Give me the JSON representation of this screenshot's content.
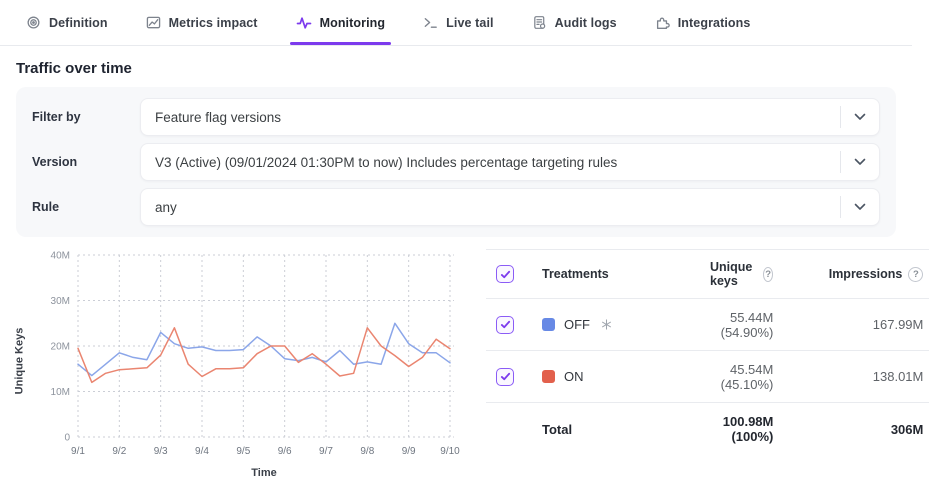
{
  "colors": {
    "accent_purple": "#7c3aed",
    "off_swatch_blue": "#6789e5",
    "on_swatch_red": "#e2604c",
    "line_blue": "#8ba6e9",
    "line_red": "#ea8570"
  },
  "tabs": {
    "items": [
      {
        "label": "Definition",
        "icon": "target-icon",
        "active": false
      },
      {
        "label": "Metrics impact",
        "icon": "line-chart-icon",
        "active": false
      },
      {
        "label": "Monitoring",
        "icon": "pulse-icon",
        "active": true
      },
      {
        "label": "Live tail",
        "icon": "terminal-icon",
        "active": false
      },
      {
        "label": "Audit logs",
        "icon": "audit-log-icon",
        "active": false
      },
      {
        "label": "Integrations",
        "icon": "puzzle-icon",
        "active": false
      }
    ]
  },
  "page_title": "Traffic over time",
  "filters": {
    "rows": [
      {
        "label": "Filter by",
        "value": "Feature flag versions"
      },
      {
        "label": "Version",
        "value": "V3 (Active) (09/01/2024 01:30PM to now) Includes percentage targeting rules"
      },
      {
        "label": "Rule",
        "value": "any"
      }
    ]
  },
  "chart_data": {
    "type": "line",
    "title": "",
    "xlabel": "Time",
    "ylabel": "Unique Keys",
    "y_unit": "M",
    "ylim_M": [
      0,
      40
    ],
    "ytick_labels": [
      "0",
      "10M",
      "20M",
      "30M",
      "40M"
    ],
    "x": [
      "9/1",
      "9/2",
      "9/3",
      "9/4",
      "9/5",
      "9/6",
      "9/7",
      "9/8",
      "9/9",
      "9/10"
    ],
    "points_per_day": 3,
    "grid": "dotted",
    "legend_position": "table-right",
    "series": [
      {
        "name": "OFF",
        "color": "#8ba6e9",
        "values_M": [
          16,
          13.5,
          16,
          18.5,
          17.5,
          17,
          23,
          20.5,
          19.5,
          19.8,
          19,
          19,
          19.2,
          22,
          20,
          17.2,
          16.8,
          17.5,
          16.5,
          19,
          16,
          16.5,
          16,
          25,
          20.5,
          18.5,
          18.5,
          16.3
        ]
      },
      {
        "name": "ON",
        "color": "#ea8570",
        "values_M": [
          19.5,
          12,
          14,
          14.8,
          15,
          15.2,
          18,
          24,
          16,
          13.3,
          15,
          15,
          15.2,
          18.3,
          20,
          20,
          16.4,
          18.3,
          16,
          13.4,
          14,
          24,
          20,
          17.9,
          15.5,
          17.5,
          21.5,
          19.4
        ]
      }
    ]
  },
  "table": {
    "header": {
      "treatments": "Treatments",
      "unique_keys": "Unique keys",
      "impressions": "Impressions",
      "help_glyph": "?"
    },
    "rows": [
      {
        "treatment": "OFF",
        "checked": true,
        "default_treatment": true,
        "unique_keys": "55.44M (54.90%)",
        "impressions": "167.99M"
      },
      {
        "treatment": "ON",
        "checked": true,
        "default_treatment": false,
        "unique_keys": "45.54M (45.10%)",
        "impressions": "138.01M"
      }
    ],
    "total": {
      "label": "Total",
      "unique_keys": "100.98M (100%)",
      "impressions": "306M"
    }
  }
}
